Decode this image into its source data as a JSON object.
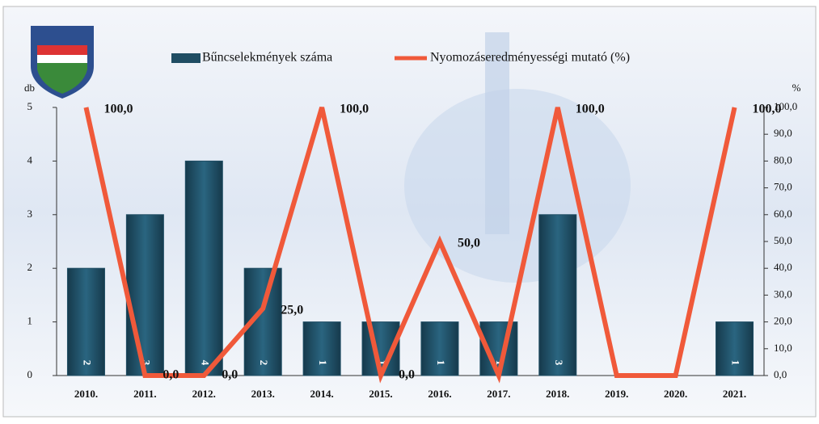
{
  "chart_data": {
    "type": "bar_line",
    "y_label": "db",
    "y2_label": "%",
    "categories": [
      "2010.",
      "2011.",
      "2012.",
      "2013.",
      "2014.",
      "2015.",
      "2016.",
      "2017.",
      "2018.",
      "2019.",
      "2020.",
      "2021."
    ],
    "series": [
      {
        "name": "Bűncselekmények száma",
        "type": "bar",
        "color": "#1f4d63",
        "values": [
          2,
          3,
          4,
          2,
          1,
          1,
          1,
          1,
          3,
          0,
          0,
          1
        ],
        "value_labels": [
          "2",
          "3",
          "4",
          "2",
          "1",
          "1",
          "1",
          "1",
          "3",
          null,
          null,
          "1"
        ]
      },
      {
        "name": "Nyomozáseredményességi mutató (%)",
        "type": "line",
        "axis": "y2",
        "color": "#f0593a",
        "values": [
          100,
          0,
          0,
          25,
          100,
          0,
          50,
          0,
          100,
          0,
          0,
          100
        ],
        "value_labels": [
          "100,0",
          "0,0",
          "0,0",
          "25,0",
          "100,0",
          "0,0",
          "50,0",
          null,
          "100,0",
          null,
          null,
          "100,0"
        ]
      }
    ],
    "ylim": [
      0,
      5
    ],
    "yticks": [
      0,
      1,
      2,
      3,
      4,
      5
    ],
    "y2lim": [
      0,
      100
    ],
    "y2ticks": [
      {
        "value": 0,
        "label": "0,0"
      },
      {
        "value": 10,
        "label": "10,0"
      },
      {
        "value": 20,
        "label": "20,0"
      },
      {
        "value": 30,
        "label": "30,0"
      },
      {
        "value": 40,
        "label": "40,0"
      },
      {
        "value": 50,
        "label": "50,0"
      },
      {
        "value": 60,
        "label": "60,0"
      },
      {
        "value": 70,
        "label": "70,0"
      },
      {
        "value": 80,
        "label": "80,0"
      },
      {
        "value": 90,
        "label": "90,0"
      },
      {
        "value": 100,
        "label": "100,0"
      }
    ]
  }
}
